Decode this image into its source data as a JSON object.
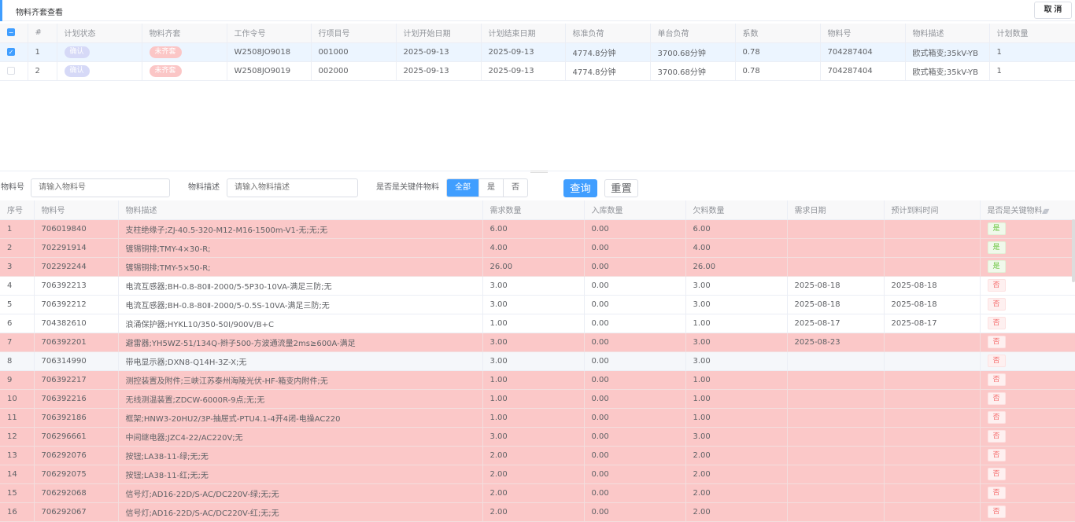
{
  "title": "物料齐套查看",
  "cancel_label": "取 消",
  "top_table": {
    "headers": [
      "#",
      "计划状态",
      "物料齐套",
      "工作令号",
      "行项目号",
      "计划开始日期",
      "计划结束日期",
      "标准负荷",
      "单台负荷",
      "系数",
      "物料号",
      "物料描述",
      "计划数量"
    ],
    "rows": [
      {
        "checked": true,
        "idx": "1",
        "status": "确认",
        "kit": "未齐套",
        "order": "W2508JO9018",
        "line": "001000",
        "start": "2025-09-13",
        "end": "2025-09-13",
        "std": "4774.8分钟",
        "unit": "3700.68分钟",
        "coef": "0.78",
        "mat": "704287404",
        "desc": "欧式箱变;35kV-YB",
        "qty": "1"
      },
      {
        "checked": false,
        "idx": "2",
        "status": "确认",
        "kit": "未齐套",
        "order": "W2508JO9019",
        "line": "002000",
        "start": "2025-09-13",
        "end": "2025-09-13",
        "std": "4774.8分钟",
        "unit": "3700.68分钟",
        "coef": "0.78",
        "mat": "704287404",
        "desc": "欧式箱变;35kV-YB",
        "qty": "1"
      }
    ]
  },
  "filter": {
    "mat_label": "物料号",
    "mat_placeholder": "请输入物料号",
    "desc_label": "物料描述",
    "desc_placeholder": "请输入物料描述",
    "key_label": "是否是关键件物料",
    "options": [
      "全部",
      "是",
      "否"
    ],
    "selected": "全部",
    "search": "查询",
    "reset": "重置"
  },
  "bottom_table": {
    "headers": [
      "序号",
      "物料号",
      "物料描述",
      "需求数量",
      "入库数量",
      "欠料数量",
      "需求日期",
      "预计到料时间",
      "是否是关键物料"
    ],
    "rows": [
      [
        "1",
        "706019840",
        "支柱绝缘子;ZJ-40.5-320-M12-M16-1500m-V1-无;无;无",
        "6.00",
        "0.00",
        "6.00",
        "",
        "",
        "是"
      ],
      [
        "2",
        "702291914",
        "镀锡铜排;TMY-4×30-R;",
        "4.00",
        "0.00",
        "4.00",
        "",
        "",
        "是"
      ],
      [
        "3",
        "702292244",
        "镀锡铜排;TMY-5×50-R;",
        "26.00",
        "0.00",
        "26.00",
        "",
        "",
        "是"
      ],
      [
        "4",
        "706392213",
        "电流互感器;BH-0.8-80Ⅱ-2000/5-5P30-10VA-满足三防;无",
        "3.00",
        "0.00",
        "3.00",
        "2025-08-18",
        "2025-08-18",
        "否"
      ],
      [
        "5",
        "706392212",
        "电流互感器;BH-0.8-80Ⅱ-2000/5-0.5S-10VA-满足三防;无",
        "3.00",
        "0.00",
        "3.00",
        "2025-08-18",
        "2025-08-18",
        "否"
      ],
      [
        "6",
        "704382610",
        "浪涌保护器;HYKL10/350-50I/900V/B+C",
        "1.00",
        "0.00",
        "1.00",
        "2025-08-17",
        "2025-08-17",
        "否"
      ],
      [
        "7",
        "706392201",
        "避雷器;YH5WZ-51/134Q-辫子500-方波通流量2ms≥600A-满足",
        "3.00",
        "0.00",
        "3.00",
        "2025-08-23",
        "",
        "否"
      ],
      [
        "8",
        "706314990",
        "带电显示器;DXN8-Q14H-3Z-X;无",
        "3.00",
        "0.00",
        "3.00",
        "",
        "",
        "否"
      ],
      [
        "9",
        "706392217",
        "测控装置及附件;三峡江苏泰州海陵光伏-HF-箱变内附件;无",
        "1.00",
        "0.00",
        "1.00",
        "",
        "",
        "否"
      ],
      [
        "10",
        "706392216",
        "无线测温装置;ZDCW-6000R-9点;无;无",
        "1.00",
        "0.00",
        "1.00",
        "",
        "",
        "否"
      ],
      [
        "11",
        "706392186",
        "框架;HNW3-20HU2/3P-抽屉式-PTU4.1-4开4闭-电操AC220",
        "1.00",
        "0.00",
        "1.00",
        "",
        "",
        "否"
      ],
      [
        "12",
        "706296661",
        "中间继电器;JZC4-22/AC220V;无",
        "3.00",
        "0.00",
        "3.00",
        "",
        "",
        "否"
      ],
      [
        "13",
        "706292076",
        "按钮;LA38-11-绿;无;无",
        "2.00",
        "0.00",
        "2.00",
        "",
        "",
        "否"
      ],
      [
        "14",
        "706292075",
        "按钮;LA38-11-红;无;无",
        "2.00",
        "0.00",
        "2.00",
        "",
        "",
        "否"
      ],
      [
        "15",
        "706292068",
        "信号灯;AD16-22D/S-AC/DC220V-绿;无;无",
        "2.00",
        "0.00",
        "2.00",
        "",
        "",
        "否"
      ],
      [
        "16",
        "706292067",
        "信号灯;AD16-22D/S-AC/DC220V-红;无;无",
        "2.00",
        "0.00",
        "2.00",
        "",
        "",
        "否"
      ]
    ],
    "row_styles": [
      "pink",
      "pink",
      "pink",
      "white",
      "white",
      "white",
      "pink",
      "hover",
      "pink",
      "pink",
      "pink",
      "pink",
      "pink",
      "pink",
      "pink",
      "pink"
    ]
  },
  "colors": {
    "accent": "#409eff",
    "pink_row": "#fbc8c8"
  }
}
